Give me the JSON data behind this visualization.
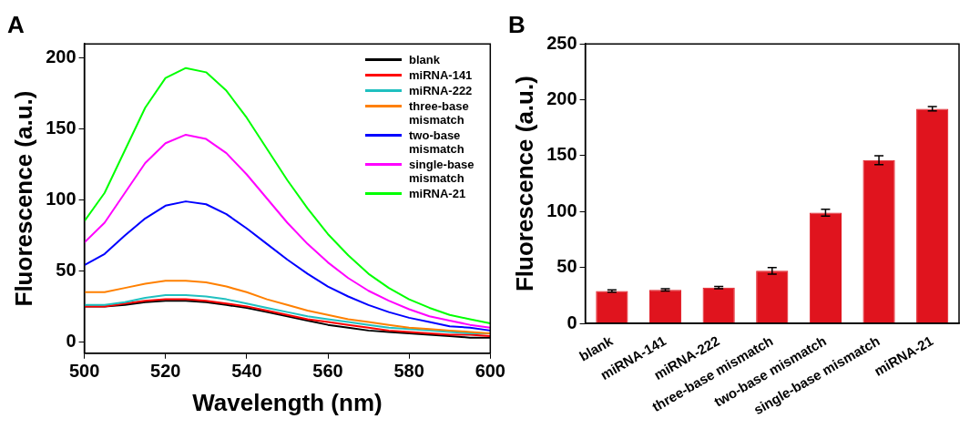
{
  "chart_data": [
    {
      "type": "line",
      "title": "A",
      "xlabel": "Wavelength (nm)",
      "ylabel": "Fluorescence (a.u.)",
      "x": [
        500,
        505,
        510,
        515,
        520,
        525,
        530,
        535,
        540,
        545,
        550,
        555,
        560,
        565,
        570,
        575,
        580,
        585,
        590,
        595,
        600
      ],
      "series": [
        {
          "name": "blank",
          "color": "#000000",
          "values": [
            25,
            25,
            26,
            28,
            29,
            29,
            28,
            26,
            24,
            21,
            18,
            15,
            12,
            10,
            8,
            7,
            6,
            5,
            4,
            3,
            3
          ]
        },
        {
          "name": "miRNA-141",
          "color": "#ff0000",
          "values": [
            25,
            25,
            27,
            29,
            30,
            30,
            29,
            27,
            25,
            22,
            19,
            16,
            14,
            12,
            10,
            8,
            7,
            6,
            5,
            5,
            4
          ]
        },
        {
          "name": "miRNA-222",
          "color": "#20c0c0",
          "values": [
            26,
            26,
            28,
            31,
            33,
            33,
            32,
            30,
            27,
            24,
            21,
            18,
            16,
            14,
            12,
            10,
            9,
            8,
            7,
            6,
            6
          ]
        },
        {
          "name": "three-base mismatch",
          "color": "#ff8000",
          "values": [
            35,
            35,
            38,
            41,
            43,
            43,
            42,
            39,
            35,
            30,
            26,
            22,
            19,
            16,
            14,
            12,
            10,
            9,
            8,
            7,
            6
          ]
        },
        {
          "name": "two-base mismatch",
          "color": "#0000ff",
          "values": [
            54,
            62,
            75,
            87,
            96,
            99,
            97,
            90,
            80,
            69,
            58,
            48,
            39,
            32,
            26,
            21,
            17,
            14,
            11,
            10,
            8
          ]
        },
        {
          "name": "single-base mismatch",
          "color": "#ff00ff",
          "values": [
            70,
            84,
            105,
            126,
            140,
            146,
            143,
            133,
            118,
            101,
            84,
            69,
            56,
            45,
            36,
            29,
            23,
            18,
            15,
            12,
            10
          ]
        },
        {
          "name": "miRNA-21",
          "color": "#00ff00",
          "values": [
            85,
            105,
            135,
            165,
            186,
            193,
            190,
            177,
            158,
            136,
            114,
            94,
            76,
            61,
            48,
            38,
            30,
            24,
            19,
            16,
            13
          ]
        }
      ],
      "xlim": [
        500,
        600
      ],
      "xticks": [
        500,
        520,
        540,
        560,
        580,
        600
      ],
      "ylim": [
        -8,
        210
      ],
      "yticks": [
        0,
        50,
        100,
        150,
        200
      ],
      "legend": "top right",
      "marker": "none",
      "line_style": "solid",
      "grid": false
    },
    {
      "type": "bar",
      "title": "B",
      "ylabel": "Fluorescence (a.u.)",
      "categories": [
        "blank",
        "miRNA-141",
        "miRNA-222",
        "three-base mismatch",
        "two-base mismatch",
        "single-base mismatch",
        "miRNA-21"
      ],
      "values": [
        29,
        30,
        32,
        47,
        99,
        146,
        192
      ],
      "errors": [
        1,
        1,
        1,
        3,
        3,
        4,
        2
      ],
      "color": "#e0141e",
      "ylim": [
        0,
        250
      ],
      "yticks": [
        0,
        50,
        100,
        150,
        200,
        250
      ],
      "grid": false
    }
  ]
}
